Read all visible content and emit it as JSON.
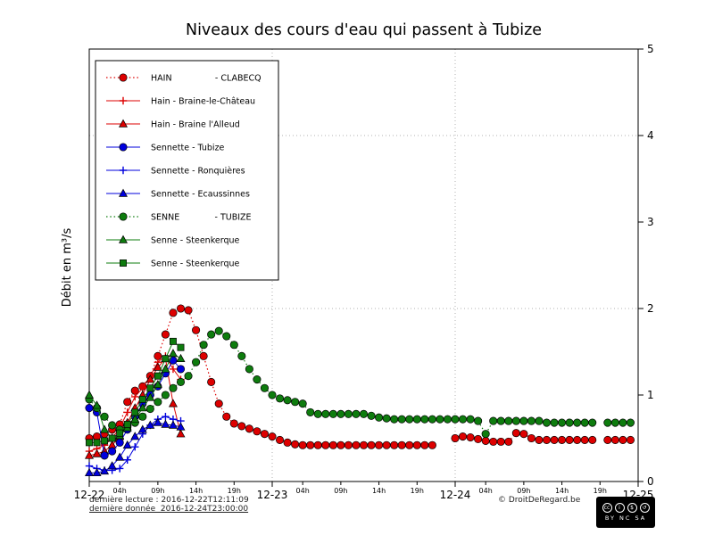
{
  "title": "Niveaux des cours d'eau qui passent à Tubize",
  "ylabel": "Débit en m³/s",
  "footer": {
    "last_read": "dernière lecture : 2016-12-22T12:11:09",
    "last_data": "dernière donnée  2016-12-24T23:00:00",
    "copyright": "© DroitDeRegard.be",
    "license": {
      "letters": "BY NC SA",
      "icons": {
        "cc": "cc",
        "by": "i",
        "nc": "$",
        "sa": "↺"
      }
    }
  },
  "chart_data": {
    "type": "line",
    "title": "Niveaux des cours d'eau qui passent à Tubize",
    "xlabel": "",
    "ylabel": "Débit en m³/s",
    "x_unit": "hours since 2016-12-22 00:00",
    "xlim": [
      0,
      72
    ],
    "ylim": [
      0,
      5
    ],
    "y_ticks": [
      0,
      1,
      2,
      3,
      4,
      5
    ],
    "x_major_ticks": [
      {
        "hour": 0,
        "label": "12-22"
      },
      {
        "hour": 24,
        "label": "12-23"
      },
      {
        "hour": 48,
        "label": "12-24"
      },
      {
        "hour": 72,
        "label": "12-25"
      }
    ],
    "x_minor_ticks": [
      {
        "hour": 4,
        "label": "04h"
      },
      {
        "hour": 9,
        "label": "09h"
      },
      {
        "hour": 14,
        "label": "14h"
      },
      {
        "hour": 19,
        "label": "19h"
      },
      {
        "hour": 28,
        "label": "04h"
      },
      {
        "hour": 33,
        "label": "09h"
      },
      {
        "hour": 38,
        "label": "14h"
      },
      {
        "hour": 43,
        "label": "19h"
      },
      {
        "hour": 52,
        "label": "04h"
      },
      {
        "hour": 57,
        "label": "09h"
      },
      {
        "hour": 62,
        "label": "14h"
      },
      {
        "hour": 67,
        "label": "19h"
      }
    ],
    "grid": {
      "x_hours": [
        24,
        48
      ],
      "y_values": [
        2,
        4
      ]
    },
    "legend_position": "upper-left",
    "series": [
      {
        "name": "HAIN - CLABECQ",
        "legend_label": "HAIN                - CLABECQ",
        "color": "#dd0000",
        "marker": "circle",
        "line": "dotted",
        "points": [
          [
            0,
            0.5
          ],
          [
            1,
            0.52
          ],
          [
            2,
            0.55
          ],
          [
            3,
            0.6
          ],
          [
            4,
            0.66
          ],
          [
            5,
            0.92
          ],
          [
            6,
            1.05
          ],
          [
            7,
            1.1
          ],
          [
            8,
            1.22
          ],
          [
            9,
            1.45
          ],
          [
            10,
            1.7
          ],
          [
            11,
            1.95
          ],
          [
            12,
            2.0
          ],
          [
            13,
            1.98
          ],
          [
            14,
            1.75
          ],
          [
            15,
            1.45
          ],
          [
            16,
            1.15
          ],
          [
            17,
            0.9
          ],
          [
            18,
            0.75
          ],
          [
            19,
            0.67
          ],
          [
            20,
            0.64
          ],
          [
            21,
            0.61
          ],
          [
            22,
            0.58
          ],
          [
            23,
            0.55
          ],
          [
            24,
            0.52
          ],
          [
            25,
            0.48
          ],
          [
            26,
            0.45
          ],
          [
            27,
            0.43
          ],
          [
            28,
            0.42
          ],
          [
            29,
            0.42
          ],
          [
            30,
            0.42
          ],
          [
            31,
            0.42
          ],
          [
            32,
            0.42
          ],
          [
            33,
            0.42
          ],
          [
            34,
            0.42
          ],
          [
            35,
            0.42
          ],
          [
            36,
            0.42
          ],
          [
            37,
            0.42
          ],
          [
            38,
            0.42
          ],
          [
            39,
            0.42
          ],
          [
            40,
            0.42
          ],
          [
            41,
            0.42
          ],
          [
            42,
            0.42
          ],
          [
            43,
            0.42
          ],
          [
            44,
            0.42
          ],
          [
            45,
            0.42
          ],
          [
            46,
            null
          ],
          [
            47,
            null
          ],
          [
            48,
            0.5
          ],
          [
            49,
            0.52
          ],
          [
            50,
            0.51
          ],
          [
            51,
            0.49
          ],
          [
            52,
            0.47
          ],
          [
            53,
            0.46
          ],
          [
            54,
            0.46
          ],
          [
            55,
            0.46
          ],
          [
            56,
            0.56
          ],
          [
            57,
            0.55
          ],
          [
            58,
            0.5
          ],
          [
            59,
            0.48
          ],
          [
            60,
            0.48
          ],
          [
            61,
            0.48
          ],
          [
            62,
            0.48
          ],
          [
            63,
            0.48
          ],
          [
            64,
            0.48
          ],
          [
            65,
            0.48
          ],
          [
            66,
            0.48
          ],
          [
            67,
            null
          ],
          [
            68,
            0.48
          ],
          [
            69,
            0.48
          ],
          [
            70,
            0.48
          ],
          [
            71,
            0.48
          ]
        ]
      },
      {
        "name": "Hain - Braine-le-Château",
        "legend_label": "Hain - Braine-le-Château",
        "color": "#dd0000",
        "marker": "plus",
        "line": "solid",
        "points": [
          [
            0,
            0.35
          ],
          [
            1,
            0.38
          ],
          [
            2,
            0.42
          ],
          [
            3,
            0.5
          ],
          [
            4,
            0.62
          ],
          [
            5,
            0.8
          ],
          [
            6,
            0.98
          ],
          [
            7,
            1.08
          ],
          [
            8,
            1.22
          ],
          [
            9,
            1.38
          ],
          [
            10,
            1.45
          ],
          [
            11,
            1.3
          ],
          [
            12,
            1.18
          ]
        ]
      },
      {
        "name": "Hain - Braine l'Alleud",
        "legend_label": "Hain - Braine l'Alleud",
        "color": "#dd0000",
        "marker": "triangle",
        "line": "solid",
        "points": [
          [
            0,
            0.3
          ],
          [
            1,
            0.32
          ],
          [
            2,
            0.35
          ],
          [
            3,
            0.42
          ],
          [
            4,
            0.52
          ],
          [
            5,
            0.68
          ],
          [
            6,
            0.85
          ],
          [
            7,
            1.0
          ],
          [
            8,
            1.18
          ],
          [
            9,
            1.32
          ],
          [
            10,
            1.42
          ],
          [
            11,
            0.9
          ],
          [
            12,
            0.55
          ]
        ]
      },
      {
        "name": "Sennette - Tubize",
        "legend_label": "Sennette - Tubize",
        "color": "#0000dd",
        "marker": "circle",
        "line": "solid",
        "points": [
          [
            0,
            0.85
          ],
          [
            1,
            0.8
          ],
          [
            2,
            0.3
          ],
          [
            3,
            0.35
          ],
          [
            4,
            0.45
          ],
          [
            5,
            0.6
          ],
          [
            6,
            0.75
          ],
          [
            7,
            0.9
          ],
          [
            8,
            1.0
          ],
          [
            9,
            1.1
          ],
          [
            10,
            1.25
          ],
          [
            11,
            1.4
          ],
          [
            12,
            1.3
          ]
        ]
      },
      {
        "name": "Sennette - Ronquières",
        "legend_label": "Sennette - Ronquières",
        "color": "#0000dd",
        "marker": "plus",
        "line": "solid",
        "points": [
          [
            0,
            0.18
          ],
          [
            1,
            0.15
          ],
          [
            2,
            0.13
          ],
          [
            3,
            0.13
          ],
          [
            4,
            0.15
          ],
          [
            5,
            0.25
          ],
          [
            6,
            0.4
          ],
          [
            7,
            0.55
          ],
          [
            8,
            0.65
          ],
          [
            9,
            0.72
          ],
          [
            10,
            0.75
          ],
          [
            11,
            0.72
          ],
          [
            12,
            0.7
          ]
        ]
      },
      {
        "name": "Sennette - Ecaussinnes",
        "legend_label": "Sennette - Ecaussinnes",
        "color": "#0000dd",
        "marker": "triangle",
        "line": "solid",
        "points": [
          [
            0,
            0.1
          ],
          [
            1,
            0.1
          ],
          [
            2,
            0.12
          ],
          [
            3,
            0.18
          ],
          [
            4,
            0.28
          ],
          [
            5,
            0.42
          ],
          [
            6,
            0.52
          ],
          [
            7,
            0.6
          ],
          [
            8,
            0.65
          ],
          [
            9,
            0.68
          ],
          [
            10,
            0.66
          ],
          [
            11,
            0.65
          ],
          [
            12,
            0.63
          ]
        ]
      },
      {
        "name": "SENNE - TUBIZE",
        "legend_label": "SENNE             - TUBIZE",
        "color": "#0e7c0e",
        "marker": "circle",
        "line": "dotted",
        "points": [
          [
            0,
            0.95
          ],
          [
            1,
            0.85
          ],
          [
            2,
            0.75
          ],
          [
            3,
            0.65
          ],
          [
            4,
            0.6
          ],
          [
            5,
            0.63
          ],
          [
            6,
            0.68
          ],
          [
            7,
            0.75
          ],
          [
            8,
            0.84
          ],
          [
            9,
            0.92
          ],
          [
            10,
            1.0
          ],
          [
            11,
            1.08
          ],
          [
            12,
            1.15
          ],
          [
            13,
            1.22
          ],
          [
            14,
            1.38
          ],
          [
            15,
            1.58
          ],
          [
            16,
            1.7
          ],
          [
            17,
            1.74
          ],
          [
            18,
            1.68
          ],
          [
            19,
            1.58
          ],
          [
            20,
            1.45
          ],
          [
            21,
            1.3
          ],
          [
            22,
            1.18
          ],
          [
            23,
            1.08
          ],
          [
            24,
            1.0
          ],
          [
            25,
            0.96
          ],
          [
            26,
            0.94
          ],
          [
            27,
            0.92
          ],
          [
            28,
            0.9
          ],
          [
            29,
            0.8
          ],
          [
            30,
            0.78
          ],
          [
            31,
            0.78
          ],
          [
            32,
            0.78
          ],
          [
            33,
            0.78
          ],
          [
            34,
            0.78
          ],
          [
            35,
            0.78
          ],
          [
            36,
            0.78
          ],
          [
            37,
            0.76
          ],
          [
            38,
            0.74
          ],
          [
            39,
            0.73
          ],
          [
            40,
            0.72
          ],
          [
            41,
            0.72
          ],
          [
            42,
            0.72
          ],
          [
            43,
            0.72
          ],
          [
            44,
            0.72
          ],
          [
            45,
            0.72
          ],
          [
            46,
            0.72
          ],
          [
            47,
            0.72
          ],
          [
            48,
            0.72
          ],
          [
            49,
            0.72
          ],
          [
            50,
            0.72
          ],
          [
            51,
            0.7
          ],
          [
            52,
            0.55
          ],
          [
            53,
            0.7
          ],
          [
            54,
            0.7
          ],
          [
            55,
            0.7
          ],
          [
            56,
            0.7
          ],
          [
            57,
            0.7
          ],
          [
            58,
            0.7
          ],
          [
            59,
            0.7
          ],
          [
            60,
            0.68
          ],
          [
            61,
            0.68
          ],
          [
            62,
            0.68
          ],
          [
            63,
            0.68
          ],
          [
            64,
            0.68
          ],
          [
            65,
            0.68
          ],
          [
            66,
            0.68
          ],
          [
            67,
            null
          ],
          [
            68,
            0.68
          ],
          [
            69,
            0.68
          ],
          [
            70,
            0.68
          ],
          [
            71,
            0.68
          ]
        ]
      },
      {
        "name": "Senne - Steenkerque",
        "legend_label": "Senne - Steenkerque",
        "color": "#0e7c0e",
        "marker": "triangle",
        "line": "solid",
        "points": [
          [
            0,
            1.0
          ],
          [
            1,
            0.88
          ],
          [
            2,
            0.6
          ],
          [
            3,
            0.5
          ],
          [
            4,
            0.53
          ],
          [
            5,
            0.62
          ],
          [
            6,
            0.72
          ],
          [
            7,
            0.85
          ],
          [
            8,
            0.97
          ],
          [
            9,
            1.12
          ],
          [
            10,
            1.3
          ],
          [
            11,
            1.48
          ],
          [
            12,
            1.42
          ]
        ]
      },
      {
        "name": "Senne - Steenkerque",
        "legend_label": "Senne - Steenkerque",
        "color": "#0e7c0e",
        "marker": "square",
        "line": "solid",
        "points": [
          [
            0,
            0.45
          ],
          [
            1,
            0.45
          ],
          [
            2,
            0.47
          ],
          [
            3,
            0.5
          ],
          [
            4,
            0.56
          ],
          [
            5,
            0.66
          ],
          [
            6,
            0.8
          ],
          [
            7,
            0.95
          ],
          [
            8,
            1.08
          ],
          [
            9,
            1.22
          ],
          [
            10,
            1.42
          ],
          [
            11,
            1.62
          ],
          [
            12,
            1.55
          ]
        ]
      }
    ]
  }
}
